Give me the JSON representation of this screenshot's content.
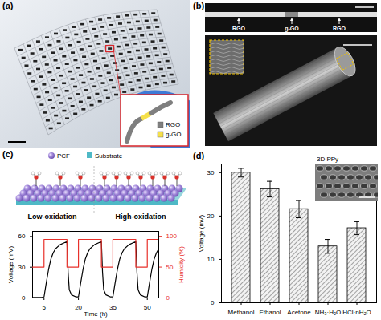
{
  "panels": {
    "a": {
      "label": "(a)",
      "legend": [
        {
          "name": "RGO",
          "color": "#7f7f7f"
        },
        {
          "name": "g-GO",
          "color": "#f5e04a"
        }
      ]
    },
    "b": {
      "label": "(b)",
      "annotations": [
        "RGO",
        "g-GO",
        "RGO"
      ]
    },
    "c": {
      "label": "(c)",
      "legend": [
        {
          "name": "PCF",
          "color": "#a58bdc"
        },
        {
          "name": "Substrate",
          "color": "#4fb9c6"
        }
      ],
      "annotations": [
        "Low-oxidation",
        "High-oxidation"
      ]
    },
    "d": {
      "label": "(d)",
      "inset": "3D PPy"
    }
  },
  "chart_data": [
    {
      "type": "line",
      "x_label": "Time (h)",
      "y_label": "Voltage (mV)",
      "y2_label": "Humidity (%)",
      "xlim": [
        0,
        55
      ],
      "xticks": [
        5,
        20,
        35,
        50
      ],
      "ylim": [
        0,
        65
      ],
      "yticks": [
        0,
        30,
        60
      ],
      "y2lim": [
        0,
        108
      ],
      "y2ticks": [
        0,
        50,
        100
      ],
      "series": [
        {
          "color": "#000000",
          "x": [
            0,
            4,
            5,
            6,
            7,
            8,
            9,
            10,
            12,
            14,
            15,
            15.5,
            16,
            17,
            19,
            20,
            21,
            22,
            23,
            24,
            25,
            27,
            29,
            30,
            30.5,
            31,
            32,
            34,
            35,
            36,
            37,
            38,
            39,
            40,
            42,
            44,
            45,
            45.5,
            46,
            47,
            49,
            50,
            51,
            52,
            53,
            54,
            55
          ],
          "values": [
            0.5,
            0.5,
            1,
            15,
            28,
            38,
            44,
            48,
            52,
            54,
            55,
            25,
            8,
            3,
            1,
            1,
            15,
            28,
            38,
            44,
            48,
            52,
            54,
            55,
            25,
            8,
            3,
            1,
            1,
            15,
            28,
            38,
            44,
            48,
            52,
            54,
            55,
            25,
            8,
            3,
            1,
            1,
            15,
            28,
            38,
            44,
            48
          ]
        },
        {
          "color": "#e8312b",
          "axis": "y2",
          "x": [
            0,
            5,
            5,
            15,
            15,
            20,
            20,
            30,
            30,
            35,
            35,
            45,
            45,
            50,
            50,
            55
          ],
          "values": [
            50,
            50,
            95,
            95,
            50,
            50,
            95,
            95,
            50,
            50,
            95,
            95,
            50,
            50,
            95,
            95
          ]
        }
      ]
    },
    {
      "type": "bar",
      "y_label": "Voltage (mV)",
      "categories": [
        "Methanol",
        "Ethanol",
        "Acetone",
        "NH₃·H₂O",
        "HCl·nH₂O"
      ],
      "values": [
        30,
        26.2,
        21.6,
        13,
        17.2
      ],
      "errors": [
        1,
        1.8,
        2,
        1.6,
        1.5
      ],
      "color": "#8c8c8c",
      "ylim": [
        0,
        32
      ],
      "yticks": [
        0,
        10,
        20,
        30
      ]
    }
  ]
}
